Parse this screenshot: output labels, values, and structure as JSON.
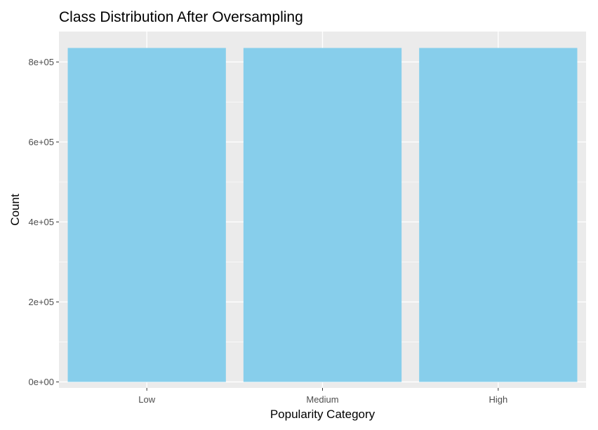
{
  "chart_data": {
    "type": "bar",
    "title": "Class Distribution After Oversampling",
    "xlabel": "Popularity Category",
    "ylabel": "Count",
    "categories": [
      "Low",
      "Medium",
      "High"
    ],
    "values": [
      835000,
      835000,
      835000
    ],
    "ylim": [
      -15000,
      876000
    ],
    "yticks": [
      0,
      200000,
      400000,
      600000,
      800000
    ],
    "ytick_labels": [
      "0e+00",
      "2e+05",
      "4e+05",
      "6e+05",
      "8e+05"
    ],
    "grid": true,
    "legend": "none",
    "colors": {
      "bar": "#87CEEB",
      "panel": "#EBEBEB",
      "grid": "#FFFFFF",
      "tick_text": "#4D4D4D",
      "axis_title": "#000000"
    }
  }
}
